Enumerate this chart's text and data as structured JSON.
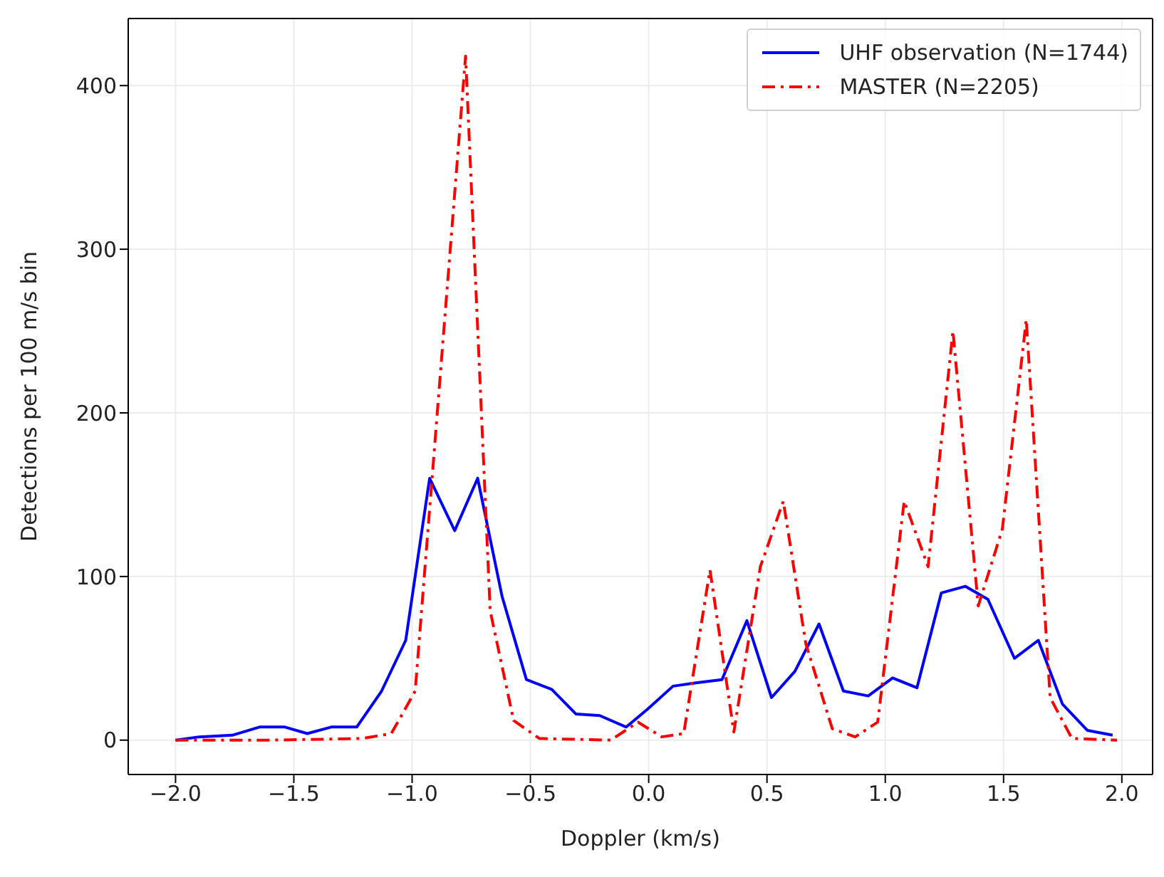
{
  "chart_data": {
    "type": "line",
    "xlabel": "Doppler (km/s)",
    "ylabel": "Detections per 100 m/s bin",
    "xlim": [
      -2.2,
      2.13
    ],
    "ylim": [
      -21,
      441
    ],
    "xticks": [
      {
        "value": -2,
        "label": "−2.0"
      },
      {
        "value": -1.5,
        "label": "−1.5"
      },
      {
        "value": -1,
        "label": "−1.0"
      },
      {
        "value": -0.5,
        "label": "−0.5"
      },
      {
        "value": 0,
        "label": "0.0"
      },
      {
        "value": 0.5,
        "label": "0.5"
      },
      {
        "value": 1,
        "label": "1.0"
      },
      {
        "value": 1.5,
        "label": "1.5"
      },
      {
        "value": 2,
        "label": "2.0"
      }
    ],
    "yticks": [
      0,
      100,
      200,
      300,
      400
    ],
    "grid": true,
    "legend": "top right",
    "series": [
      {
        "name": "UHF observation (N=1744)",
        "color": "#0000ff",
        "line_style": "solid",
        "x": [
          -2.0,
          -1.9,
          -1.76,
          -1.645,
          -1.538,
          -1.443,
          -1.342,
          -1.234,
          -1.129,
          -1.027,
          -0.926,
          -0.82,
          -0.723,
          -0.62,
          -0.517,
          -0.41,
          -0.308,
          -0.207,
          -0.095,
          -0.004,
          0.103,
          0.2,
          0.31,
          0.415,
          0.519,
          0.618,
          0.72,
          0.823,
          0.928,
          1.031,
          1.134,
          1.237,
          1.339,
          1.434,
          1.546,
          1.647,
          1.749,
          1.854,
          1.961
        ],
        "values": [
          0,
          2,
          3,
          8,
          8,
          4,
          8,
          8,
          30,
          61,
          160,
          128,
          160,
          88,
          37,
          31,
          16,
          15,
          8,
          19,
          33,
          35,
          37,
          73,
          26,
          42,
          71,
          30,
          27,
          38,
          32,
          90,
          94,
          86,
          50,
          61,
          22,
          6,
          3
        ]
      },
      {
        "name": "MASTER (N=2205)",
        "color": "#ff0000",
        "line_style": "dashdot",
        "x": [
          -2.0,
          -1.6,
          -1.21,
          -1.088,
          -0.987,
          -0.774,
          -0.67,
          -0.571,
          -0.462,
          -0.16,
          -0.045,
          0.055,
          0.148,
          0.259,
          0.36,
          0.472,
          0.569,
          0.664,
          0.776,
          0.873,
          0.968,
          1.08,
          1.181,
          1.286,
          1.393,
          1.495,
          1.596,
          1.697,
          1.789,
          1.98
        ],
        "values": [
          0,
          0,
          1,
          4,
          30,
          418,
          79,
          12,
          1,
          0,
          11,
          2,
          4,
          104,
          5,
          106,
          146,
          59,
          7,
          2,
          11,
          146,
          106,
          250,
          82,
          129,
          257,
          26,
          1,
          0
        ]
      }
    ]
  }
}
